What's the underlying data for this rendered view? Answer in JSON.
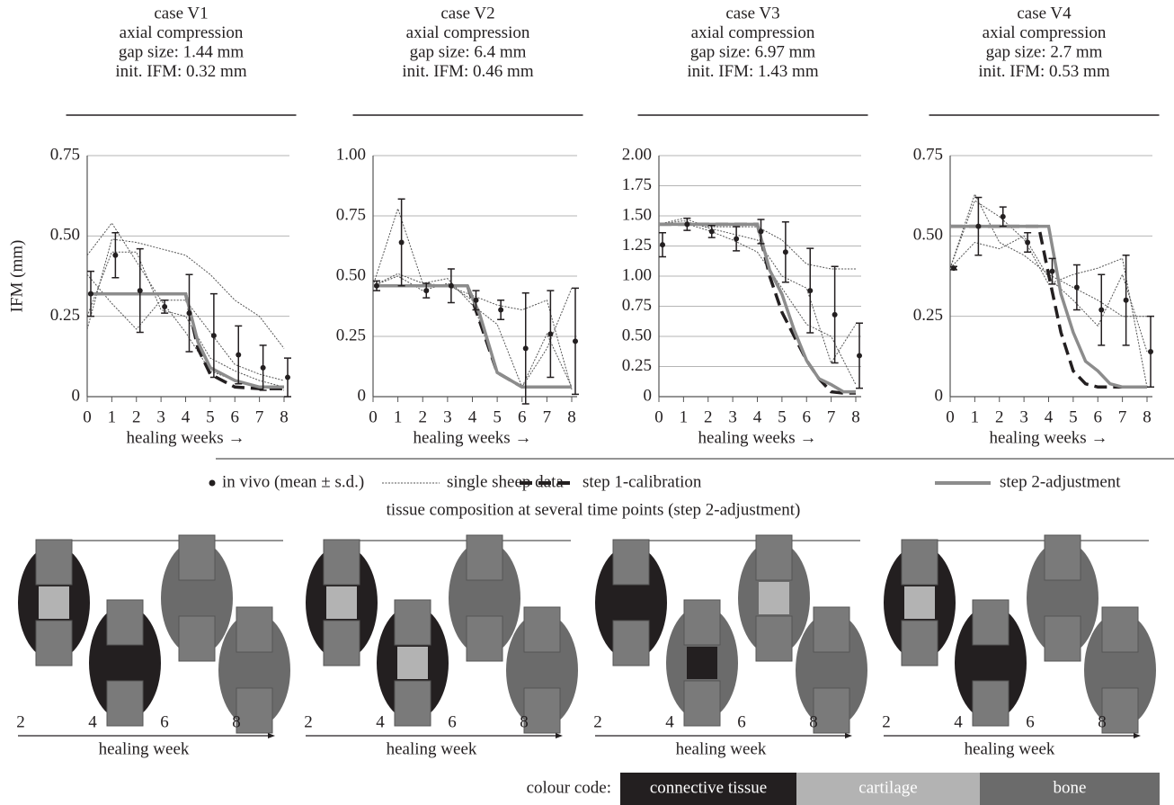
{
  "chart_data": [
    {
      "type": "line",
      "title": [
        "case V1",
        "axial compression",
        "gap size: 1.44 mm",
        "init. IFM: 0.32 mm"
      ],
      "ylabel": "IFM (mm)",
      "xlabel": "healing weeks →",
      "x": [
        0,
        1,
        2,
        3,
        4,
        5,
        6,
        7,
        8
      ],
      "xlim": [
        0,
        8
      ],
      "xticks": [
        0,
        1,
        2,
        3,
        4,
        5,
        6,
        7,
        8
      ],
      "ylim": [
        0,
        0.75
      ],
      "yticks": [
        0,
        0.25,
        {
          "value": 0.5,
          "label": "0.50"
        },
        0.75
      ],
      "grid": true,
      "series": [
        {
          "name": "in vivo (mean ± s.d.)",
          "style": "points",
          "color": "#231f20",
          "values": [
            0.32,
            0.44,
            0.33,
            0.28,
            0.26,
            0.19,
            0.13,
            0.09,
            0.06
          ],
          "errors": [
            0.07,
            0.07,
            0.13,
            0.02,
            0.12,
            0.13,
            0.09,
            0.07,
            0.06
          ]
        },
        {
          "name": "single sheep data",
          "style": "dotted",
          "color": "#555555",
          "lines": [
            [
              0.21,
              0.49,
              0.48,
              0.46,
              0.44,
              0.38,
              0.3,
              0.25,
              0.15
            ],
            [
              0.44,
              0.54,
              0.42,
              0.3,
              0.3,
              0.2,
              0.1,
              0.07,
              0.05
            ],
            [
              0.38,
              0.29,
              0.21,
              0.3,
              0.2,
              0.08,
              0.05,
              0.03,
              0.02
            ],
            [
              0.25,
              0.45,
              0.45,
              0.27,
              0.25,
              0.12,
              0.08,
              0.05,
              0.03
            ]
          ]
        },
        {
          "name": "step 1-calibration",
          "style": "dashed",
          "color": "#231f20",
          "x": [
            0,
            4,
            4.5,
            5,
            6,
            7,
            8
          ],
          "values": [
            0.32,
            0.32,
            0.15,
            0.07,
            0.03,
            0.025,
            0.025
          ]
        },
        {
          "name": "step 2-adjustment",
          "style": "solid",
          "color": "#8c8c8c",
          "x": [
            0,
            4,
            4.5,
            5,
            6,
            7,
            8
          ],
          "values": [
            0.32,
            0.32,
            0.17,
            0.09,
            0.05,
            0.03,
            0.03
          ]
        }
      ]
    },
    {
      "type": "line",
      "title": [
        "case V2",
        "axial compression",
        "gap size: 6.4 mm",
        "init. IFM: 0.46 mm"
      ],
      "xlabel": "healing weeks →",
      "x": [
        0,
        1,
        2,
        3,
        4,
        5,
        6,
        7,
        8
      ],
      "xlim": [
        0,
        8
      ],
      "xticks": [
        0,
        1,
        2,
        3,
        4,
        5,
        6,
        7,
        8
      ],
      "ylim": [
        0,
        1
      ],
      "yticks": [
        0,
        0.25,
        {
          "value": 0.5,
          "label": "0.50"
        },
        0.75,
        {
          "value": 1,
          "label": "1.00"
        }
      ],
      "grid": true,
      "series": [
        {
          "style": "points",
          "color": "#231f20",
          "values": [
            0.46,
            0.64,
            0.44,
            0.46,
            0.4,
            0.36,
            0.2,
            0.26,
            0.23
          ],
          "errors": [
            0.02,
            0.18,
            0.03,
            0.07,
            0.04,
            0.04,
            0.23,
            0.18,
            0.22
          ]
        },
        {
          "style": "dotted",
          "color": "#555555",
          "lines": [
            [
              0.46,
              0.78,
              0.47,
              0.46,
              0.42,
              0.38,
              0.36,
              0.4,
              0.03
            ],
            [
              0.46,
              0.5,
              0.44,
              0.47,
              0.4,
              0.1,
              0.04,
              0.26,
              0.04
            ],
            [
              0.46,
              0.51,
              0.47,
              0.49,
              0.38,
              0.3,
              0.04,
              0.2,
              0.45
            ]
          ]
        },
        {
          "style": "dashed",
          "color": "#231f20",
          "x": [
            0,
            3.8,
            4.5,
            5,
            6,
            7,
            8
          ],
          "values": [
            0.46,
            0.46,
            0.25,
            0.1,
            0.04,
            0.04,
            0.04
          ]
        },
        {
          "style": "solid",
          "color": "#8c8c8c",
          "x": [
            0,
            3.8,
            4.3,
            5,
            6,
            7,
            8
          ],
          "values": [
            0.46,
            0.46,
            0.34,
            0.1,
            0.04,
            0.04,
            0.04
          ]
        }
      ]
    },
    {
      "type": "line",
      "title": [
        "case V3",
        "axial compression",
        "gap size: 6.97 mm",
        "init. IFM: 1.43 mm"
      ],
      "xlabel": "healing weeks →",
      "x": [
        0,
        1,
        2,
        3,
        4,
        5,
        6,
        7,
        8
      ],
      "xlim": [
        0,
        8
      ],
      "xticks": [
        0,
        1,
        2,
        3,
        4,
        5,
        6,
        7,
        8
      ],
      "ylim": [
        0,
        2
      ],
      "yticks": [
        0,
        0.25,
        {
          "value": 0.5,
          "label": "0.50"
        },
        0.75,
        {
          "value": 1,
          "label": "1.00"
        },
        1.25,
        {
          "value": 1.5,
          "label": "1.50"
        },
        1.75,
        {
          "value": 2,
          "label": "2.00"
        }
      ],
      "grid": true,
      "series": [
        {
          "style": "points",
          "color": "#231f20",
          "values": [
            1.26,
            1.43,
            1.37,
            1.31,
            1.37,
            1.2,
            0.88,
            0.68,
            0.34
          ],
          "errors": [
            0.1,
            0.05,
            0.05,
            0.1,
            0.1,
            0.25,
            0.35,
            0.4,
            0.27
          ]
        },
        {
          "style": "dotted",
          "color": "#555555",
          "lines": [
            [
              1.43,
              1.48,
              1.41,
              1.41,
              1.41,
              1.3,
              1.1,
              1.06,
              1.06
            ],
            [
              1.43,
              1.46,
              1.4,
              1.35,
              1.3,
              1.0,
              0.9,
              0.28,
              0.6
            ],
            [
              1.43,
              1.44,
              1.38,
              1.3,
              1.2,
              0.9,
              0.6,
              0.5,
              0.1
            ]
          ]
        },
        {
          "style": "dashed",
          "color": "#231f20",
          "x": [
            0,
            4,
            4.5,
            5,
            6,
            6.5,
            7,
            7.5,
            8
          ],
          "values": [
            1.43,
            1.43,
            1.0,
            0.7,
            0.3,
            0.15,
            0.04,
            0.03,
            0.03
          ]
        },
        {
          "style": "solid",
          "color": "#8c8c8c",
          "x": [
            0,
            4,
            4.5,
            5,
            5.5,
            6,
            6.5,
            7,
            7.5,
            8
          ],
          "values": [
            1.43,
            1.43,
            1.05,
            0.85,
            0.55,
            0.3,
            0.15,
            0.1,
            0.04,
            0.04
          ]
        }
      ]
    },
    {
      "type": "line",
      "title": [
        "case V4",
        "axial compression",
        "gap size: 2.7 mm",
        "init. IFM: 0.53 mm"
      ],
      "xlabel": "healing weeks →",
      "x": [
        0,
        1,
        2,
        3,
        4,
        5,
        6,
        7,
        8
      ],
      "xlim": [
        0,
        8
      ],
      "xticks": [
        0,
        1,
        2,
        3,
        4,
        5,
        6,
        7,
        8
      ],
      "ylim": [
        0,
        0.75
      ],
      "yticks": [
        0,
        0.25,
        {
          "value": 0.5,
          "label": "0.50"
        },
        0.75
      ],
      "grid": true,
      "series": [
        {
          "style": "points",
          "color": "#231f20",
          "values": [
            0.4,
            0.53,
            0.56,
            0.48,
            0.39,
            0.34,
            0.27,
            0.3,
            0.14
          ],
          "errors": [
            0.005,
            0.09,
            0.03,
            0.03,
            0.04,
            0.07,
            0.11,
            0.14,
            0.11
          ]
        },
        {
          "style": "dotted",
          "color": "#555555",
          "lines": [
            [
              0.4,
              0.63,
              0.48,
              0.44,
              0.38,
              0.34,
              0.3,
              0.25,
              0.25
            ],
            [
              0.4,
              0.61,
              0.56,
              0.49,
              0.35,
              0.38,
              0.4,
              0.43,
              0.03
            ],
            [
              0.4,
              0.48,
              0.46,
              0.5,
              0.37,
              0.3,
              0.22,
              0.38,
              0.14
            ]
          ]
        },
        {
          "style": "dashed",
          "color": "#231f20",
          "x": [
            0,
            3.6,
            4,
            4.5,
            5,
            5.5,
            6,
            7,
            8
          ],
          "values": [
            0.53,
            0.53,
            0.38,
            0.2,
            0.08,
            0.04,
            0.03,
            0.03,
            0.03
          ]
        },
        {
          "style": "solid",
          "color": "#8c8c8c",
          "x": [
            0,
            4,
            4.5,
            5,
            5.5,
            6,
            6.5,
            7,
            8
          ],
          "values": [
            0.53,
            0.53,
            0.32,
            0.2,
            0.11,
            0.08,
            0.04,
            0.03,
            0.03
          ]
        }
      ]
    }
  ],
  "tissue_composition": {
    "title": "tissue composition at several time points (step 2-adjustment)",
    "panels": [
      {
        "weeks": [
          2,
          4,
          6,
          8
        ],
        "xlabel": "healing week"
      },
      {
        "weeks": [
          2,
          4,
          6,
          8
        ],
        "xlabel": "healing week"
      },
      {
        "weeks": [
          2,
          4,
          6,
          8
        ],
        "xlabel": "healing week"
      },
      {
        "weeks": [
          2,
          4,
          6,
          8
        ],
        "xlabel": "healing week"
      }
    ],
    "colour_code": {
      "label": "colour code:",
      "items": [
        {
          "name": "connective tissue",
          "color": "#231f20"
        },
        {
          "name": "cartilage",
          "color": "#b3b3b3"
        },
        {
          "name": "bone",
          "color": "#6b6b6b"
        }
      ]
    }
  }
}
